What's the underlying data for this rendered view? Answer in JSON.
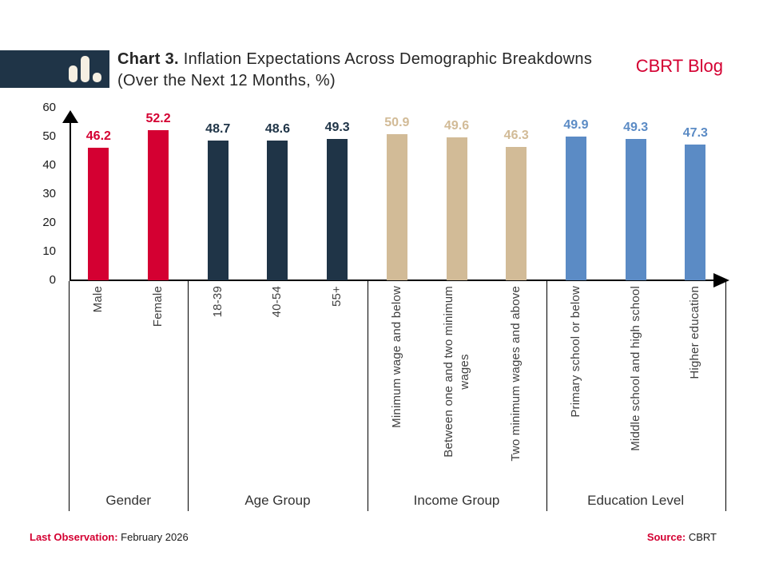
{
  "header": {
    "logo_icon": "bar-chart-icon",
    "title_bold": "Chart 3.",
    "title_rest": "Inflation Expectations Across Demographic Breakdowns",
    "title_line2": "(Over the Next 12 Months, %)",
    "brand": "CBRT Blog"
  },
  "chart_data": {
    "type": "bar",
    "title": "Chart 3. Inflation Expectations Across Demographic Breakdowns (Over the Next 12 Months, %)",
    "ylabel": "",
    "ylim": [
      0,
      60
    ],
    "yticks": [
      60,
      50,
      40,
      30,
      20,
      10,
      0
    ],
    "grid": false,
    "value_labels": true,
    "legend": "none",
    "groups": [
      {
        "label": "Gender",
        "color": "#D40032",
        "categories": [
          "Male",
          "Female"
        ],
        "values": [
          46.2,
          52.2
        ]
      },
      {
        "label": "Age Group",
        "color": "#1F3447",
        "categories": [
          "18-39",
          "40-54",
          "55+"
        ],
        "values": [
          48.7,
          48.6,
          49.3
        ]
      },
      {
        "label": "Income Group",
        "color": "#D2BB97",
        "categories": [
          "Minimum wage and below",
          "Between one and two minimum\nwages",
          "Two minimum wages and above"
        ],
        "values": [
          50.9,
          49.6,
          46.3
        ]
      },
      {
        "label": "Education Level",
        "color": "#5B8BC5",
        "categories": [
          "Primary school or below",
          "Middle school and high school",
          "Higher education"
        ],
        "values": [
          49.9,
          49.3,
          47.3
        ]
      }
    ]
  },
  "footer": {
    "last_obs_label": "Last Observation:",
    "last_obs_value": "February 2026",
    "source_label": "Source:",
    "source_value": "CBRT"
  },
  "colors": {
    "brand_red": "#D40032",
    "navy": "#1F3447",
    "tan": "#D2BB97",
    "blue": "#5B8BC5",
    "axis": "#000000",
    "text": "#1A1A1A",
    "muted_text": "#404040",
    "logo_bar": "#F5EFE2"
  }
}
